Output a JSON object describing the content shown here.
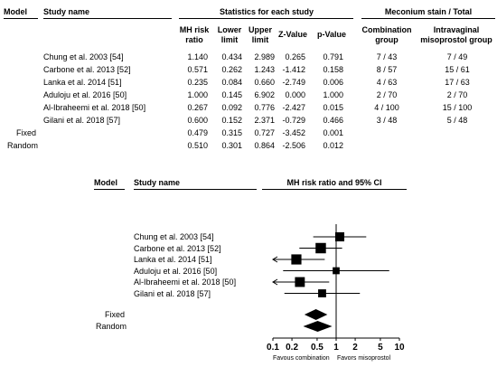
{
  "table": {
    "header": {
      "model": "Model",
      "study_name": "Study name",
      "stats_group": "Statistics for each study",
      "mh_risk_ratio": [
        "MH risk",
        "ratio"
      ],
      "lower_limit": [
        "Lower",
        "limit"
      ],
      "upper_limit": [
        "Upper",
        "limit"
      ],
      "z_value": "Z-Value",
      "p_value": "p-Value",
      "meconium_group": "Meconium stain / Total",
      "combination_group": [
        "Combination",
        "group"
      ],
      "intravaginal_group": [
        "Intravaginal",
        "misoprostol group"
      ]
    },
    "rows": [
      {
        "study": "Chung et al. 2003 [54]",
        "rr": "1.140",
        "lower": "0.434",
        "upper": "2.989",
        "z": "0.265",
        "p": "0.791",
        "comb": "7 / 43",
        "intra": "7 / 49"
      },
      {
        "study": "Carbone et al. 2013 [52]",
        "rr": "0.571",
        "lower": "0.262",
        "upper": "1.243",
        "z": "-1.412",
        "p": "0.158",
        "comb": "8 / 57",
        "intra": "15 / 61"
      },
      {
        "study": "Lanka et al. 2014 [51]",
        "rr": "0.235",
        "lower": "0.084",
        "upper": "0.660",
        "z": "-2.749",
        "p": "0.006",
        "comb": "4 / 63",
        "intra": "17 / 63"
      },
      {
        "study": "Aduloju et al. 2016 [50]",
        "rr": "1.000",
        "lower": "0.145",
        "upper": "6.902",
        "z": "0.000",
        "p": "1.000",
        "comb": "2 / 70",
        "intra": "2 / 70"
      },
      {
        "study": "Al-Ibraheemi et al. 2018 [50]",
        "rr": "0.267",
        "lower": "0.092",
        "upper": "0.776",
        "z": "-2.427",
        "p": "0.015",
        "comb": "4 / 100",
        "intra": "15 / 100"
      },
      {
        "study": "Gilani et al. 2018 [57]",
        "rr": "0.600",
        "lower": "0.152",
        "upper": "2.371",
        "z": "-0.729",
        "p": "0.466",
        "comb": "3 / 48",
        "intra": "5 / 48"
      }
    ],
    "pooled": [
      {
        "model": "Fixed",
        "rr": "0.479",
        "lower": "0.315",
        "upper": "0.727",
        "z": "-3.452",
        "p": "0.001"
      },
      {
        "model": "Random",
        "rr": "0.510",
        "lower": "0.301",
        "upper": "0.864",
        "z": "-2.506",
        "p": "0.012"
      }
    ]
  },
  "plot_labels": {
    "model": "Model",
    "study_name": "Study name",
    "title": "MH risk ratio and 95% CI",
    "favours_left": "Favous combination",
    "favours_right": "Favors misoprostol"
  },
  "chart_data": {
    "type": "forest",
    "title": "MH risk ratio and 95% CI",
    "scale": "log",
    "xlim": [
      0.1,
      10
    ],
    "ticks": [
      0.1,
      0.2,
      0.5,
      1,
      2,
      5,
      10
    ],
    "tick_labels": [
      "0.1",
      "0.2",
      "0.5",
      "1",
      "2",
      "5",
      "10"
    ],
    "xlabel_left": "Favous combination",
    "xlabel_right": "Favors misoprostol",
    "studies": [
      {
        "name": "Chung et al. 2003 [54]",
        "rr": 1.14,
        "lower": 0.434,
        "upper": 2.989,
        "weight": 14.0
      },
      {
        "name": "Carbone et al. 2013 [52]",
        "rr": 0.571,
        "lower": 0.262,
        "upper": 1.243,
        "weight": 23.0
      },
      {
        "name": "Lanka et al. 2014 [51]",
        "rr": 0.235,
        "lower": 0.084,
        "upper": 0.66,
        "weight": 21.0
      },
      {
        "name": "Aduloju et al. 2016 [50]",
        "rr": 1.0,
        "lower": 0.145,
        "upper": 6.902,
        "weight": 4.0
      },
      {
        "name": "Al-Ibraheemi et al. 2018 [50]",
        "rr": 0.267,
        "lower": 0.092,
        "upper": 0.776,
        "weight": 19.0
      },
      {
        "name": "Gilani et al. 2018 [57]",
        "rr": 0.6,
        "lower": 0.152,
        "upper": 2.371,
        "weight": 8.0
      }
    ],
    "pooled": [
      {
        "name": "Fixed",
        "rr": 0.479,
        "lower": 0.315,
        "upper": 0.727
      },
      {
        "name": "Random",
        "rr": 0.51,
        "lower": 0.301,
        "upper": 0.864
      }
    ]
  }
}
